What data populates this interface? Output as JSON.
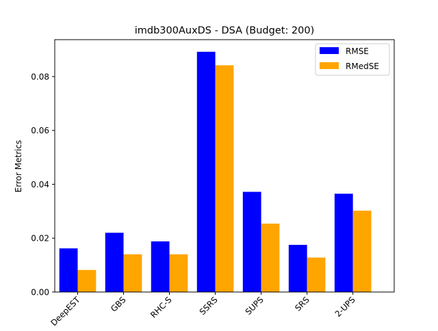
{
  "chart_data": {
    "type": "bar",
    "title": "imdb300AuxDS - DSA (Budget: 200)",
    "xlabel": "",
    "ylabel": "Error Metrics",
    "categories": [
      "DeepEST",
      "GBS",
      "RHC-S",
      "SSRS",
      "SUPS",
      "SRS",
      "2-UPS"
    ],
    "series": [
      {
        "name": "RMSE",
        "color": "#0000ff",
        "values": [
          0.0162,
          0.022,
          0.0188,
          0.0892,
          0.0372,
          0.0175,
          0.0365
        ]
      },
      {
        "name": "RMedSE",
        "color": "#ffa500",
        "values": [
          0.0082,
          0.014,
          0.014,
          0.0842,
          0.0254,
          0.0128,
          0.0302
        ]
      }
    ],
    "ylim": [
      0,
      0.0937
    ],
    "yticks": [
      "0.00",
      "0.02",
      "0.04",
      "0.06",
      "0.08"
    ],
    "legend_position": "top-right",
    "grid": false
  }
}
